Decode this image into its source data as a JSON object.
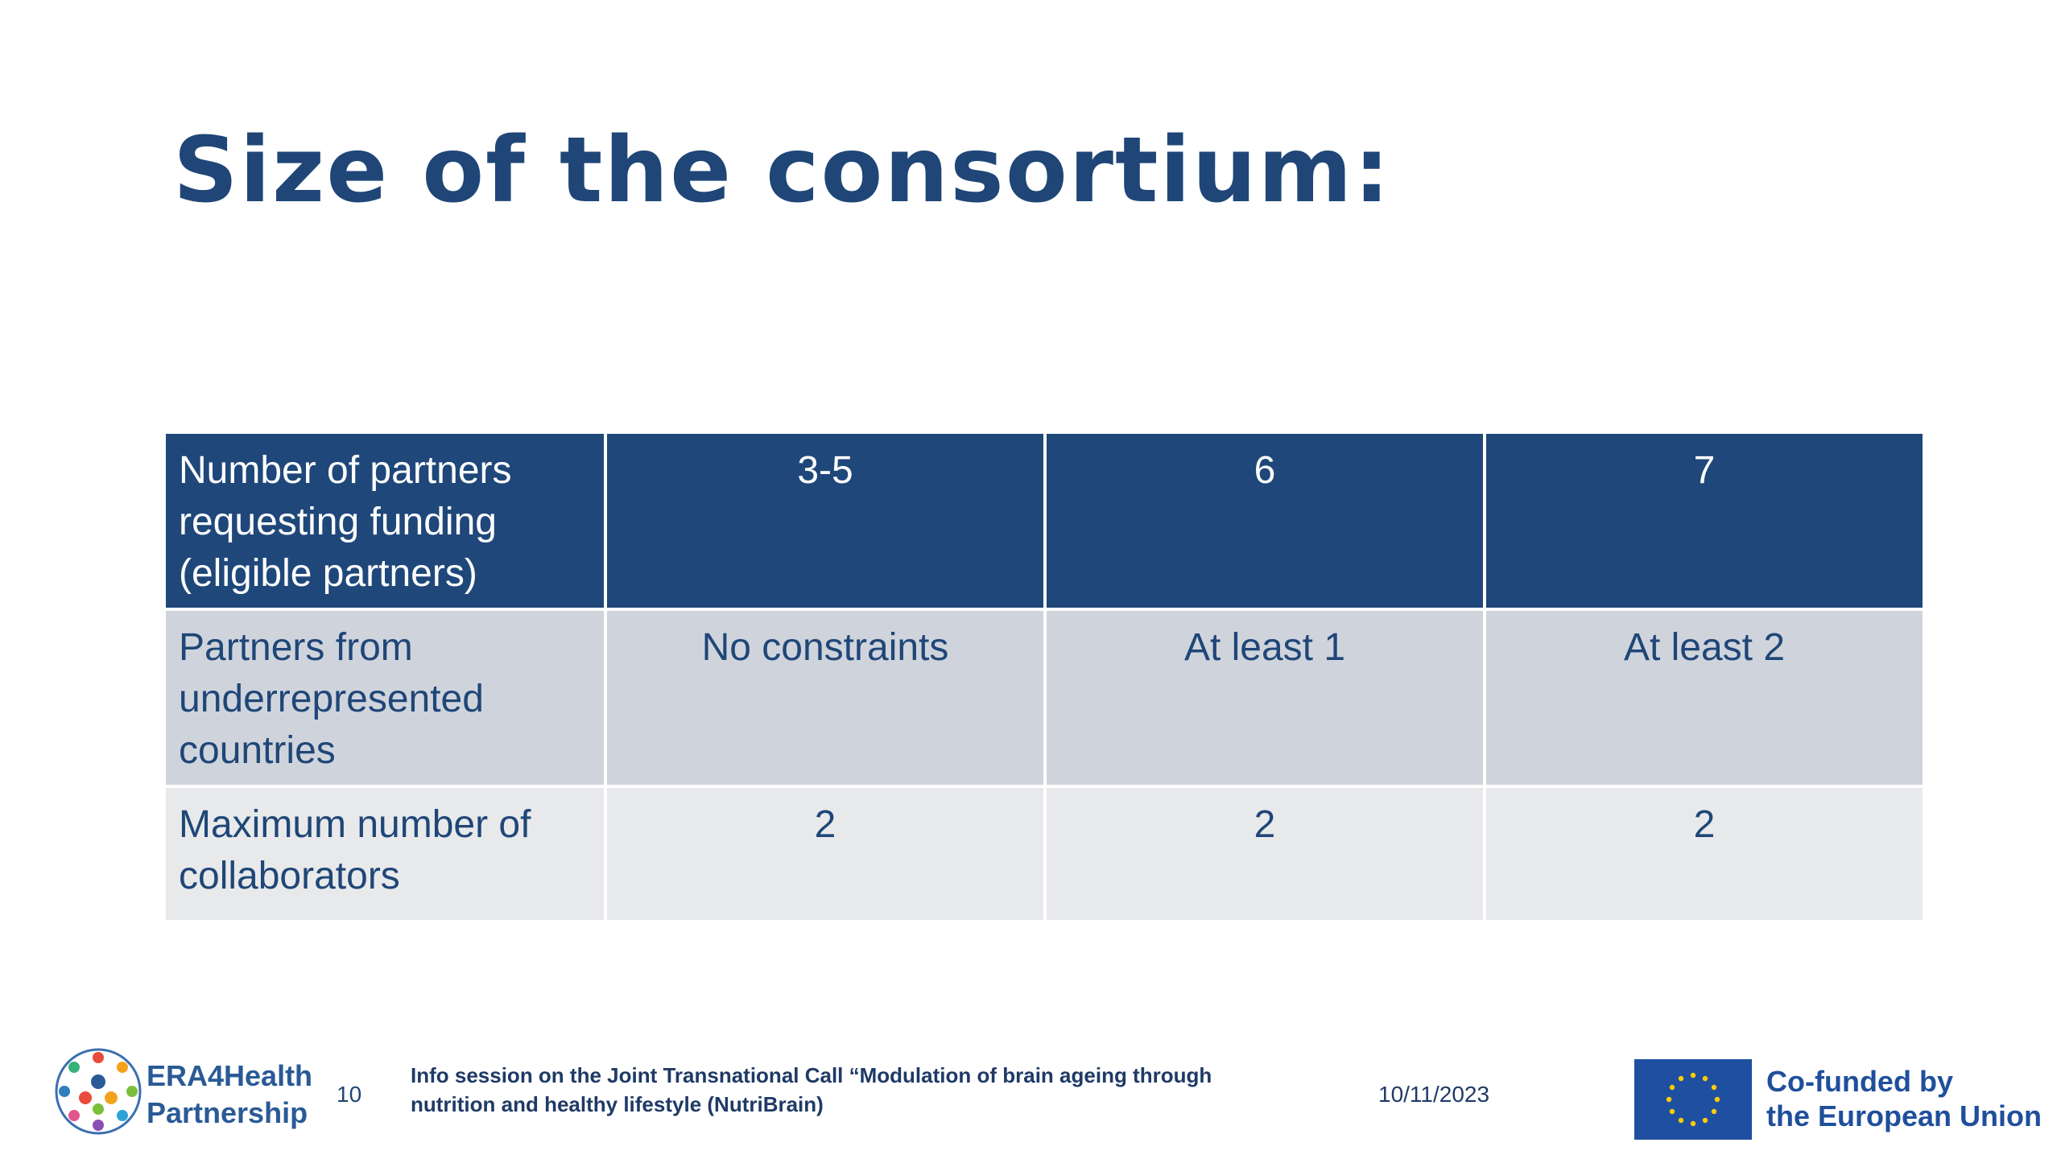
{
  "slide": {
    "title": "Size of the consortium:"
  },
  "table": {
    "header": {
      "label": "Number of partners requesting funding (eligible partners)",
      "values": [
        "3-5",
        "6",
        "7"
      ]
    },
    "rows": [
      {
        "label": "Partners from underrepresented countries",
        "values": [
          "No constraints",
          "At least 1",
          "At least 2"
        ]
      },
      {
        "label": "Maximum number of collaborators",
        "values": [
          "2",
          "2",
          "2"
        ]
      }
    ]
  },
  "footer": {
    "brand_line1": "ERA4Health",
    "brand_line2": "Partnership",
    "page_number": "10",
    "description": "Info session on the Joint Transnational Call “Modulation of brain ageing through nutrition and healthy lifestyle (NutriBrain)",
    "date": "10/11/2023",
    "eu_line1": "Co-funded by",
    "eu_line2": "the European Union"
  },
  "colors": {
    "title": "#1f4677",
    "header_bg": "#1f477a",
    "row_a_bg": "#cfd4dc",
    "row_b_bg": "#e8e9eb",
    "eu_blue": "#1e4fa0",
    "eu_star": "#ffcc00"
  },
  "icons": {
    "brand_logo": "era4health-circle-of-people-logo",
    "eu_flag": "eu-flag-icon"
  }
}
